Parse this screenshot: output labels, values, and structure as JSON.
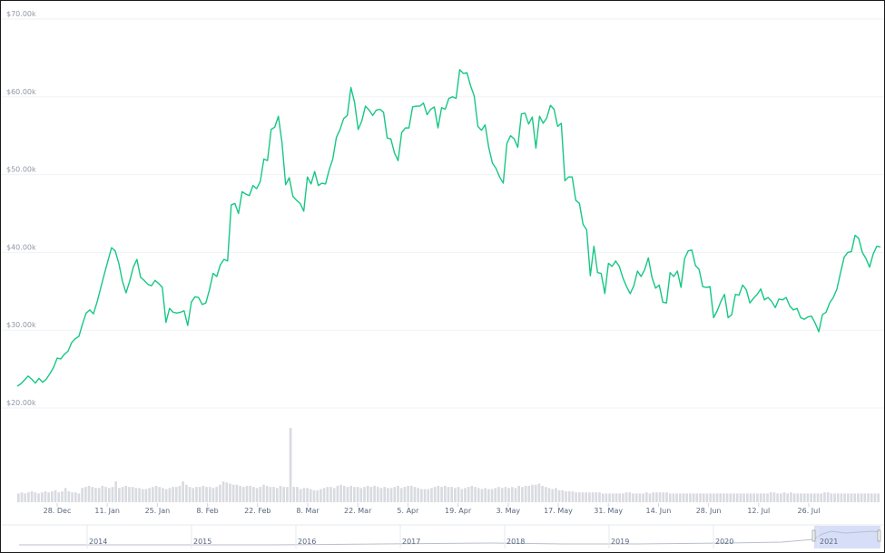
{
  "chart_data": {
    "type": "line",
    "y_ticks": [
      "$20.00k",
      "$30.00k",
      "$40.00k",
      "$50.00k",
      "$60.00k",
      "$70.00k"
    ],
    "y_tick_values": [
      20000,
      30000,
      40000,
      50000,
      60000,
      70000
    ],
    "ylim": [
      20000,
      70000
    ],
    "x_ticks": [
      "28. Dec",
      "11. Jan",
      "25. Jan",
      "8. Feb",
      "22. Feb",
      "8. Mar",
      "22. Mar",
      "5. Apr",
      "19. Apr",
      "3. May",
      "17. May",
      "31. May",
      "14. Jun",
      "28. Jun",
      "12. Jul",
      "26. Jul"
    ],
    "grid": "horizontal",
    "colors": {
      "line": "#16c784",
      "volume": "#d9dbe1",
      "navigator_highlight": "#c9d4f5",
      "grid": "#eff2f5"
    },
    "series": [
      {
        "values": [
          22800,
          23100,
          23600,
          24100,
          23700,
          23200,
          23800,
          23300,
          23700,
          24400,
          25200,
          26400,
          26300,
          26900,
          27300,
          28400,
          28900,
          29200,
          30800,
          32200,
          32600,
          32100,
          33600,
          35400,
          37200,
          38900,
          40600,
          40200,
          38600,
          36300,
          34800,
          36300,
          38100,
          39100,
          36800,
          36400,
          35900,
          35700,
          36400,
          36000,
          35500,
          31000,
          32800,
          32300,
          32200,
          32300,
          32500,
          30600,
          33600,
          34300,
          34200,
          33300,
          33500,
          35200,
          37300,
          36900,
          38400,
          39100,
          38900,
          46100,
          46300,
          45000,
          47800,
          47500,
          47300,
          48600,
          48200,
          49100,
          52000,
          51800,
          55800,
          56100,
          57500,
          54100,
          48700,
          49600,
          47200,
          46700,
          46300,
          45300,
          49700,
          48800,
          50400,
          48600,
          48900,
          48800,
          50600,
          52000,
          54800,
          55800,
          57200,
          57600,
          61200,
          59300,
          55800,
          56900,
          58800,
          58300,
          57600,
          58300,
          58400,
          58000,
          54700,
          54600,
          52800,
          51800,
          55400,
          56000,
          56000,
          58700,
          58800,
          58800,
          59200,
          57700,
          58400,
          58700,
          56000,
          58600,
          58400,
          59800,
          60000,
          59800,
          63500,
          63000,
          63100,
          61400,
          60100,
          56200,
          55700,
          56400,
          53500,
          51500,
          50800,
          49700,
          48900,
          54000,
          55000,
          54600,
          53500,
          57800,
          57900,
          56500,
          57400,
          53400,
          57500,
          56600,
          57300,
          58900,
          58400,
          56200,
          56600,
          49200,
          49700,
          49700,
          46700,
          46300,
          43600,
          42900,
          37000,
          40800,
          37400,
          37300,
          34700,
          38600,
          38200,
          38900,
          38200,
          36700,
          35600,
          34700,
          35700,
          37600,
          36900,
          37800,
          39300,
          36800,
          35400,
          35800,
          33600,
          33500,
          37400,
          36900,
          37600,
          35500,
          39200,
          40200,
          40300,
          38300,
          37800,
          35600,
          35500,
          35600,
          31600,
          32500,
          33700,
          34600,
          31600,
          32000,
          34600,
          34500,
          35800,
          35200,
          33500,
          34100,
          34600,
          35300,
          33900,
          34200,
          33700,
          32900,
          34000,
          33900,
          34200,
          33100,
          32600,
          32800,
          31600,
          31400,
          31700,
          31800,
          30900,
          29800,
          32000,
          32300,
          33500,
          34200,
          35300,
          37400,
          39400,
          40000,
          40100,
          42200,
          41800,
          40000,
          39200,
          38100,
          39800,
          40800,
          40700
        ]
      }
    ],
    "volume_max": 68,
    "volume": [
      8,
      9,
      8,
      9,
      10,
      9,
      8,
      9,
      10,
      9,
      10,
      11,
      9,
      10,
      13,
      10,
      9,
      9,
      8,
      13,
      14,
      15,
      14,
      13,
      13,
      15,
      14,
      13,
      14,
      19,
      13,
      14,
      15,
      14,
      14,
      13,
      13,
      12,
      12,
      13,
      14,
      15,
      14,
      13,
      12,
      13,
      14,
      14,
      15,
      19,
      16,
      14,
      13,
      14,
      14,
      15,
      14,
      14,
      13,
      14,
      16,
      19,
      18,
      17,
      16,
      16,
      15,
      14,
      15,
      15,
      14,
      13,
      14,
      16,
      15,
      14,
      14,
      13,
      15,
      14,
      14,
      68,
      14,
      14,
      12,
      13,
      13,
      12,
      11,
      11,
      12,
      13,
      14,
      14,
      13,
      15,
      16,
      15,
      14,
      15,
      14,
      14,
      13,
      14,
      15,
      14,
      15,
      14,
      13,
      14,
      13,
      13,
      14,
      15,
      13,
      14,
      15,
      15,
      14,
      13,
      12,
      12,
      12,
      13,
      14,
      15,
      14,
      15,
      14,
      14,
      13,
      14,
      12,
      13,
      14,
      15,
      14,
      13,
      12,
      13,
      12,
      12,
      13,
      14,
      13,
      14,
      13,
      14,
      13,
      15,
      14,
      15,
      15,
      16,
      16,
      17,
      15,
      14,
      13,
      12,
      13,
      11,
      11,
      10,
      10,
      10,
      9,
      9,
      9,
      9,
      9,
      9,
      9,
      9,
      8,
      8,
      8,
      8,
      8,
      8,
      8,
      9,
      9,
      8,
      8,
      8,
      8,
      9,
      8,
      9,
      9,
      9,
      9,
      9,
      8,
      8,
      8,
      8,
      8,
      8,
      8,
      8,
      8,
      8,
      8,
      8,
      8,
      8,
      8,
      8,
      8,
      8,
      8,
      8,
      8,
      8,
      8,
      8,
      8,
      8,
      8,
      8,
      8,
      8,
      9,
      9,
      8,
      8,
      9,
      8,
      9,
      8,
      8,
      8,
      8,
      8,
      8,
      8,
      8,
      8,
      9,
      9,
      8,
      8,
      8,
      8,
      8,
      8,
      8,
      8,
      8,
      8,
      8,
      8,
      8,
      8,
      8
    ],
    "navigator_years": [
      "2014",
      "2015",
      "2016",
      "2017",
      "2018",
      "2019",
      "2020",
      "2021"
    ]
  }
}
